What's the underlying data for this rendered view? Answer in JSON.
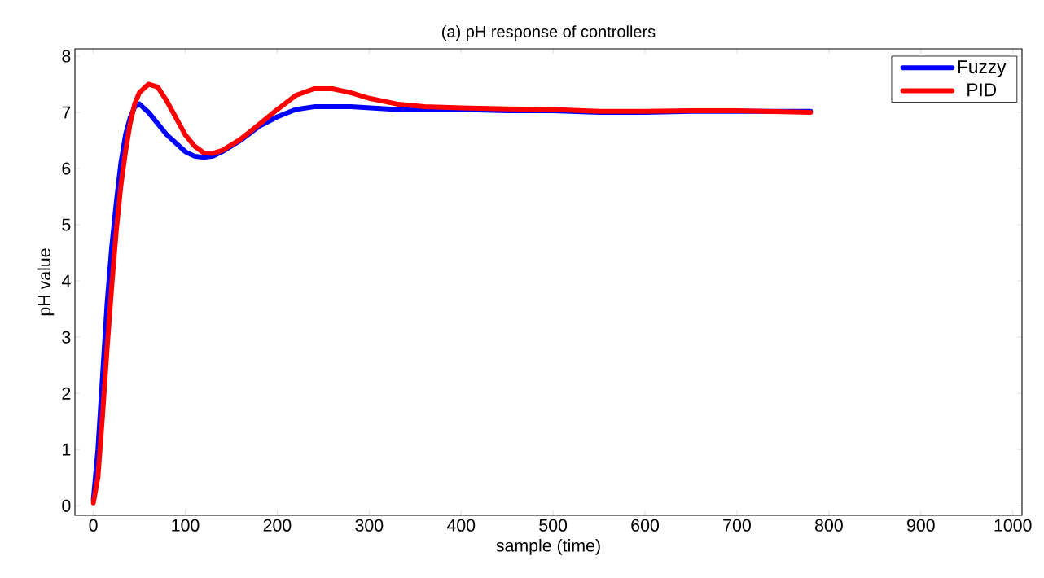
{
  "chart_data": {
    "type": "line",
    "title": "(a) pH response of controllers",
    "xlabel": "sample (time)",
    "ylabel": "pH  value",
    "xlim": [
      -20,
      1010
    ],
    "ylim": [
      -0.17,
      8.13
    ],
    "xticks": [
      0,
      100,
      200,
      300,
      400,
      500,
      600,
      700,
      800,
      900,
      1000
    ],
    "yticks": [
      0,
      1,
      2,
      3,
      4,
      5,
      6,
      7,
      8
    ],
    "legend": "top right",
    "series": [
      {
        "name": "Fuzzy",
        "color": "#0000ff",
        "x": [
          0,
          5,
          10,
          15,
          20,
          25,
          30,
          35,
          40,
          45,
          50,
          60,
          70,
          80,
          90,
          100,
          110,
          120,
          130,
          140,
          160,
          180,
          200,
          220,
          240,
          280,
          300,
          330,
          400,
          450,
          500,
          550,
          600,
          650,
          700,
          780
        ],
        "values": [
          0.1,
          1,
          2.3,
          3.6,
          4.6,
          5.4,
          6.1,
          6.6,
          6.9,
          7.1,
          7.15,
          7.0,
          6.8,
          6.6,
          6.45,
          6.3,
          6.22,
          6.2,
          6.22,
          6.3,
          6.5,
          6.75,
          6.92,
          7.05,
          7.1,
          7.1,
          7.08,
          7.05,
          7.05,
          7.03,
          7.03,
          7.0,
          7.0,
          7.02,
          7.02,
          7.02
        ]
      },
      {
        "name": "PID",
        "color": "#ff0000",
        "x": [
          0,
          5,
          10,
          15,
          20,
          25,
          30,
          35,
          40,
          45,
          50,
          60,
          70,
          80,
          90,
          100,
          110,
          120,
          130,
          140,
          160,
          180,
          200,
          220,
          240,
          260,
          280,
          300,
          330,
          360,
          400,
          450,
          500,
          550,
          600,
          650,
          700,
          780
        ],
        "values": [
          0.05,
          0.5,
          1.6,
          2.8,
          3.9,
          4.9,
          5.7,
          6.3,
          6.8,
          7.15,
          7.35,
          7.5,
          7.45,
          7.2,
          6.9,
          6.6,
          6.4,
          6.28,
          6.27,
          6.32,
          6.52,
          6.78,
          7.05,
          7.3,
          7.42,
          7.42,
          7.35,
          7.25,
          7.15,
          7.1,
          7.08,
          7.06,
          7.05,
          7.02,
          7.02,
          7.03,
          7.03,
          7.0
        ]
      }
    ]
  }
}
